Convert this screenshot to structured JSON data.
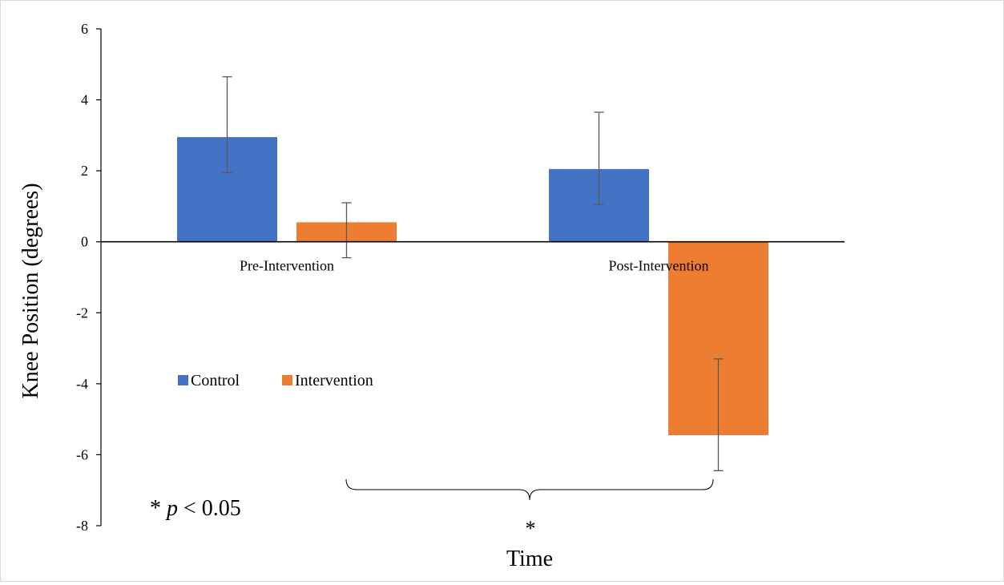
{
  "chart_data": {
    "type": "bar",
    "categories": [
      "Pre-Intervention",
      "Post-Intervention"
    ],
    "series": [
      {
        "name": "Control",
        "values": [
          2.95,
          2.05
        ],
        "error": [
          [
            1.0,
            1.7
          ],
          [
            1.0,
            1.6
          ]
        ],
        "color": "#4472C4"
      },
      {
        "name": "Intervention",
        "values": [
          0.55,
          -5.45
        ],
        "error": [
          [
            1.0,
            0.55
          ],
          [
            1.0,
            2.15
          ]
        ],
        "color": "#ED7D31"
      }
    ],
    "ylabel": "Knee Position (degrees)",
    "xlabel": "Time",
    "ylim": [
      -8,
      6
    ],
    "yticks": [
      6,
      4,
      2,
      0,
      -2,
      -4,
      -6,
      -8
    ],
    "ytick_labels": [
      "6",
      "4",
      "2",
      "0",
      "-2",
      "-4",
      "-6",
      "-8"
    ],
    "grid": false,
    "legend_position": "lower-left",
    "annotations": {
      "significance_star": "*",
      "p_note_prefix": "* ",
      "p_note_symbol": "p",
      "p_note_suffix": " < 0.05"
    }
  }
}
